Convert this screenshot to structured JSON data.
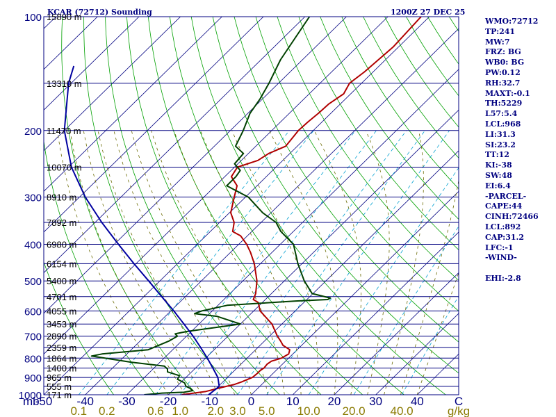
{
  "title_left": "KCAR (72712) Sounding",
  "title_right": "1200Z 27 DEC 25",
  "indices": [
    "WMO:72712",
    "TP:241",
    "MW:7",
    "FRZ: BG",
    "WB0: BG",
    "PW:0.12",
    "RH:32.7",
    "MAXT:-0.1",
    "TH:5229",
    "L57:5.4",
    "LCL:968",
    "LI:31.3",
    "SI:23.2",
    "TT:12",
    "KI:-38",
    "SW:48",
    "EI:6.4",
    "-PARCEL-",
    "CAPE:44",
    "CINH:72466",
    "LCL:892",
    "CAP:31.2",
    "LFC:-1",
    "-WIND-",
    "",
    "EHI:-2.8"
  ],
  "colors": {
    "frame": "#000080",
    "isobar": "#000080",
    "isotherm": "#000080",
    "dry_adiabat": "#00a000",
    "moist_adiabat": "#6a6a00",
    "mixing_ratio": "#00a0d0",
    "temperature": "#b00000",
    "dewpoint": "#004000",
    "parcel": "#0000a0",
    "mr_text": "#8a7a00"
  },
  "chart_data": {
    "type": "line",
    "chart_kind": "skew-T log-p sounding",
    "y_scale": "log",
    "ylim": [
      1000,
      100
    ],
    "xlim": [
      -50,
      50
    ],
    "ylabel": "mb",
    "pressure_ticks": [
      100,
      200,
      300,
      400,
      500,
      600,
      700,
      800,
      900,
      1000
    ],
    "temperature_ticks": [
      -50,
      -40,
      -30,
      -20,
      -10,
      0,
      10,
      20,
      30,
      40
    ],
    "temperature_tick_labels": [
      "-50",
      "-40",
      "-30",
      "-20",
      "-10",
      "0",
      "10",
      "20",
      "30",
      "40"
    ],
    "x_end_label": "C",
    "mixing_ratio_ticks": [
      "0.1",
      "0.2",
      "0.6",
      "1.0",
      "2.0",
      "3.0",
      "5.0",
      "10.0",
      "20.0",
      "40.0"
    ],
    "mixing_ratio_unit": "g/kg",
    "height_labels": [
      {
        "p": 1000,
        "text": "171 m"
      },
      {
        "p": 950,
        "text": "555 m"
      },
      {
        "p": 900,
        "text": "965 m"
      },
      {
        "p": 850,
        "text": "1400 m"
      },
      {
        "p": 800,
        "text": "1864 m"
      },
      {
        "p": 750,
        "text": "2359 m"
      },
      {
        "p": 700,
        "text": "2890 m"
      },
      {
        "p": 650,
        "text": "3453 m"
      },
      {
        "p": 600,
        "text": "4055 m"
      },
      {
        "p": 550,
        "text": "4701 m"
      },
      {
        "p": 500,
        "text": "5400 m"
      },
      {
        "p": 450,
        "text": "6154 m"
      },
      {
        "p": 400,
        "text": "6980 m"
      },
      {
        "p": 350,
        "text": "7892 m"
      },
      {
        "p": 300,
        "text": "8910 m"
      },
      {
        "p": 250,
        "text": "10070 m"
      },
      {
        "p": 200,
        "text": "11470 m"
      },
      {
        "p": 150,
        "text": "13310 m"
      },
      {
        "p": 100,
        "text": "15890 m"
      }
    ],
    "series": [
      {
        "points": [
          [
            1000,
            -16.8
          ],
          [
            980,
            -11.7
          ],
          [
            960,
            -9.4
          ],
          [
            940,
            -6.7
          ],
          [
            925,
            -5.5
          ],
          [
            900,
            -4.0
          ],
          [
            880,
            -3.8
          ],
          [
            860,
            -3.8
          ],
          [
            850,
            -3.5
          ],
          [
            830,
            -3.7
          ],
          [
            815,
            -3.4
          ],
          [
            800,
            -1.7
          ],
          [
            780,
            -1.0
          ],
          [
            760,
            -1.8
          ],
          [
            740,
            -4.5
          ],
          [
            720,
            -6.2
          ],
          [
            700,
            -8.1
          ],
          [
            650,
            -12.4
          ],
          [
            600,
            -18.5
          ],
          [
            570,
            -21.0
          ],
          [
            560,
            -22.9
          ],
          [
            540,
            -23.8
          ],
          [
            500,
            -26.6
          ],
          [
            450,
            -31.5
          ],
          [
            420,
            -35.2
          ],
          [
            400,
            -38.1
          ],
          [
            380,
            -41.6
          ],
          [
            370,
            -44.6
          ],
          [
            350,
            -46.5
          ],
          [
            330,
            -49.7
          ],
          [
            300,
            -52.7
          ],
          [
            280,
            -54.8
          ],
          [
            265,
            -58.4
          ],
          [
            250,
            -59.3
          ],
          [
            240,
            -56.0
          ],
          [
            230,
            -55.1
          ],
          [
            220,
            -52.8
          ],
          [
            200,
            -53.6
          ],
          [
            190,
            -53.4
          ],
          [
            180,
            -53.0
          ],
          [
            170,
            -52.8
          ],
          [
            160,
            -51.7
          ],
          [
            150,
            -52.9
          ],
          [
            140,
            -52.1
          ],
          [
            120,
            -51.3
          ],
          [
            100,
            -52.0
          ]
        ]
      },
      {
        "points": [
          [
            1000,
            -25.8
          ],
          [
            990,
            -21.9
          ],
          [
            985,
            -16.8
          ],
          [
            975,
            -15.1
          ],
          [
            960,
            -16.5
          ],
          [
            950,
            -17.8
          ],
          [
            930,
            -19.0
          ],
          [
            910,
            -21.6
          ],
          [
            890,
            -22.0
          ],
          [
            870,
            -25.8
          ],
          [
            855,
            -26.5
          ],
          [
            840,
            -28.0
          ],
          [
            820,
            -37.0
          ],
          [
            790,
            -48.0
          ],
          [
            780,
            -46.0
          ],
          [
            760,
            -35.9
          ],
          [
            720,
            -33.0
          ],
          [
            700,
            -32.2
          ],
          [
            690,
            -33.3
          ],
          [
            680,
            -31.0
          ],
          [
            650,
            -20.0
          ],
          [
            620,
            -27.6
          ],
          [
            610,
            -33.6
          ],
          [
            600,
            -32.5
          ],
          [
            580,
            -27.8
          ],
          [
            565,
            -12.3
          ],
          [
            560,
            -5.0
          ],
          [
            555,
            -4.7
          ],
          [
            540,
            -10.2
          ],
          [
            500,
            -15.2
          ],
          [
            450,
            -21.0
          ],
          [
            400,
            -26.8
          ],
          [
            370,
            -33.0
          ],
          [
            350,
            -36.4
          ],
          [
            330,
            -42.0
          ],
          [
            300,
            -49.3
          ],
          [
            280,
            -57.3
          ],
          [
            265,
            -57.3
          ],
          [
            255,
            -57.8
          ],
          [
            245,
            -60.8
          ],
          [
            230,
            -61.2
          ],
          [
            220,
            -64.9
          ],
          [
            200,
            -66.9
          ],
          [
            180,
            -69.5
          ],
          [
            165,
            -70.6
          ],
          [
            150,
            -72.3
          ],
          [
            130,
            -75.3
          ],
          [
            100,
            -78.9
          ]
        ]
      },
      {
        "points": [
          [
            1000,
            -10.3
          ],
          [
            975,
            -10.0
          ],
          [
            950,
            -9.8
          ],
          [
            900,
            -12.3
          ],
          [
            850,
            -15.8
          ],
          [
            800,
            -19.6
          ],
          [
            750,
            -23.8
          ],
          [
            700,
            -28.4
          ],
          [
            650,
            -33.6
          ],
          [
            600,
            -39.3
          ],
          [
            550,
            -45.7
          ],
          [
            500,
            -52.7
          ],
          [
            450,
            -60.5
          ],
          [
            400,
            -69.0
          ],
          [
            350,
            -78.4
          ],
          [
            300,
            -88.6
          ],
          [
            250,
            -99.3
          ],
          [
            200,
            -110.0
          ],
          [
            150,
            -120.6
          ],
          [
            135,
            -123.6
          ]
        ]
      }
    ]
  }
}
